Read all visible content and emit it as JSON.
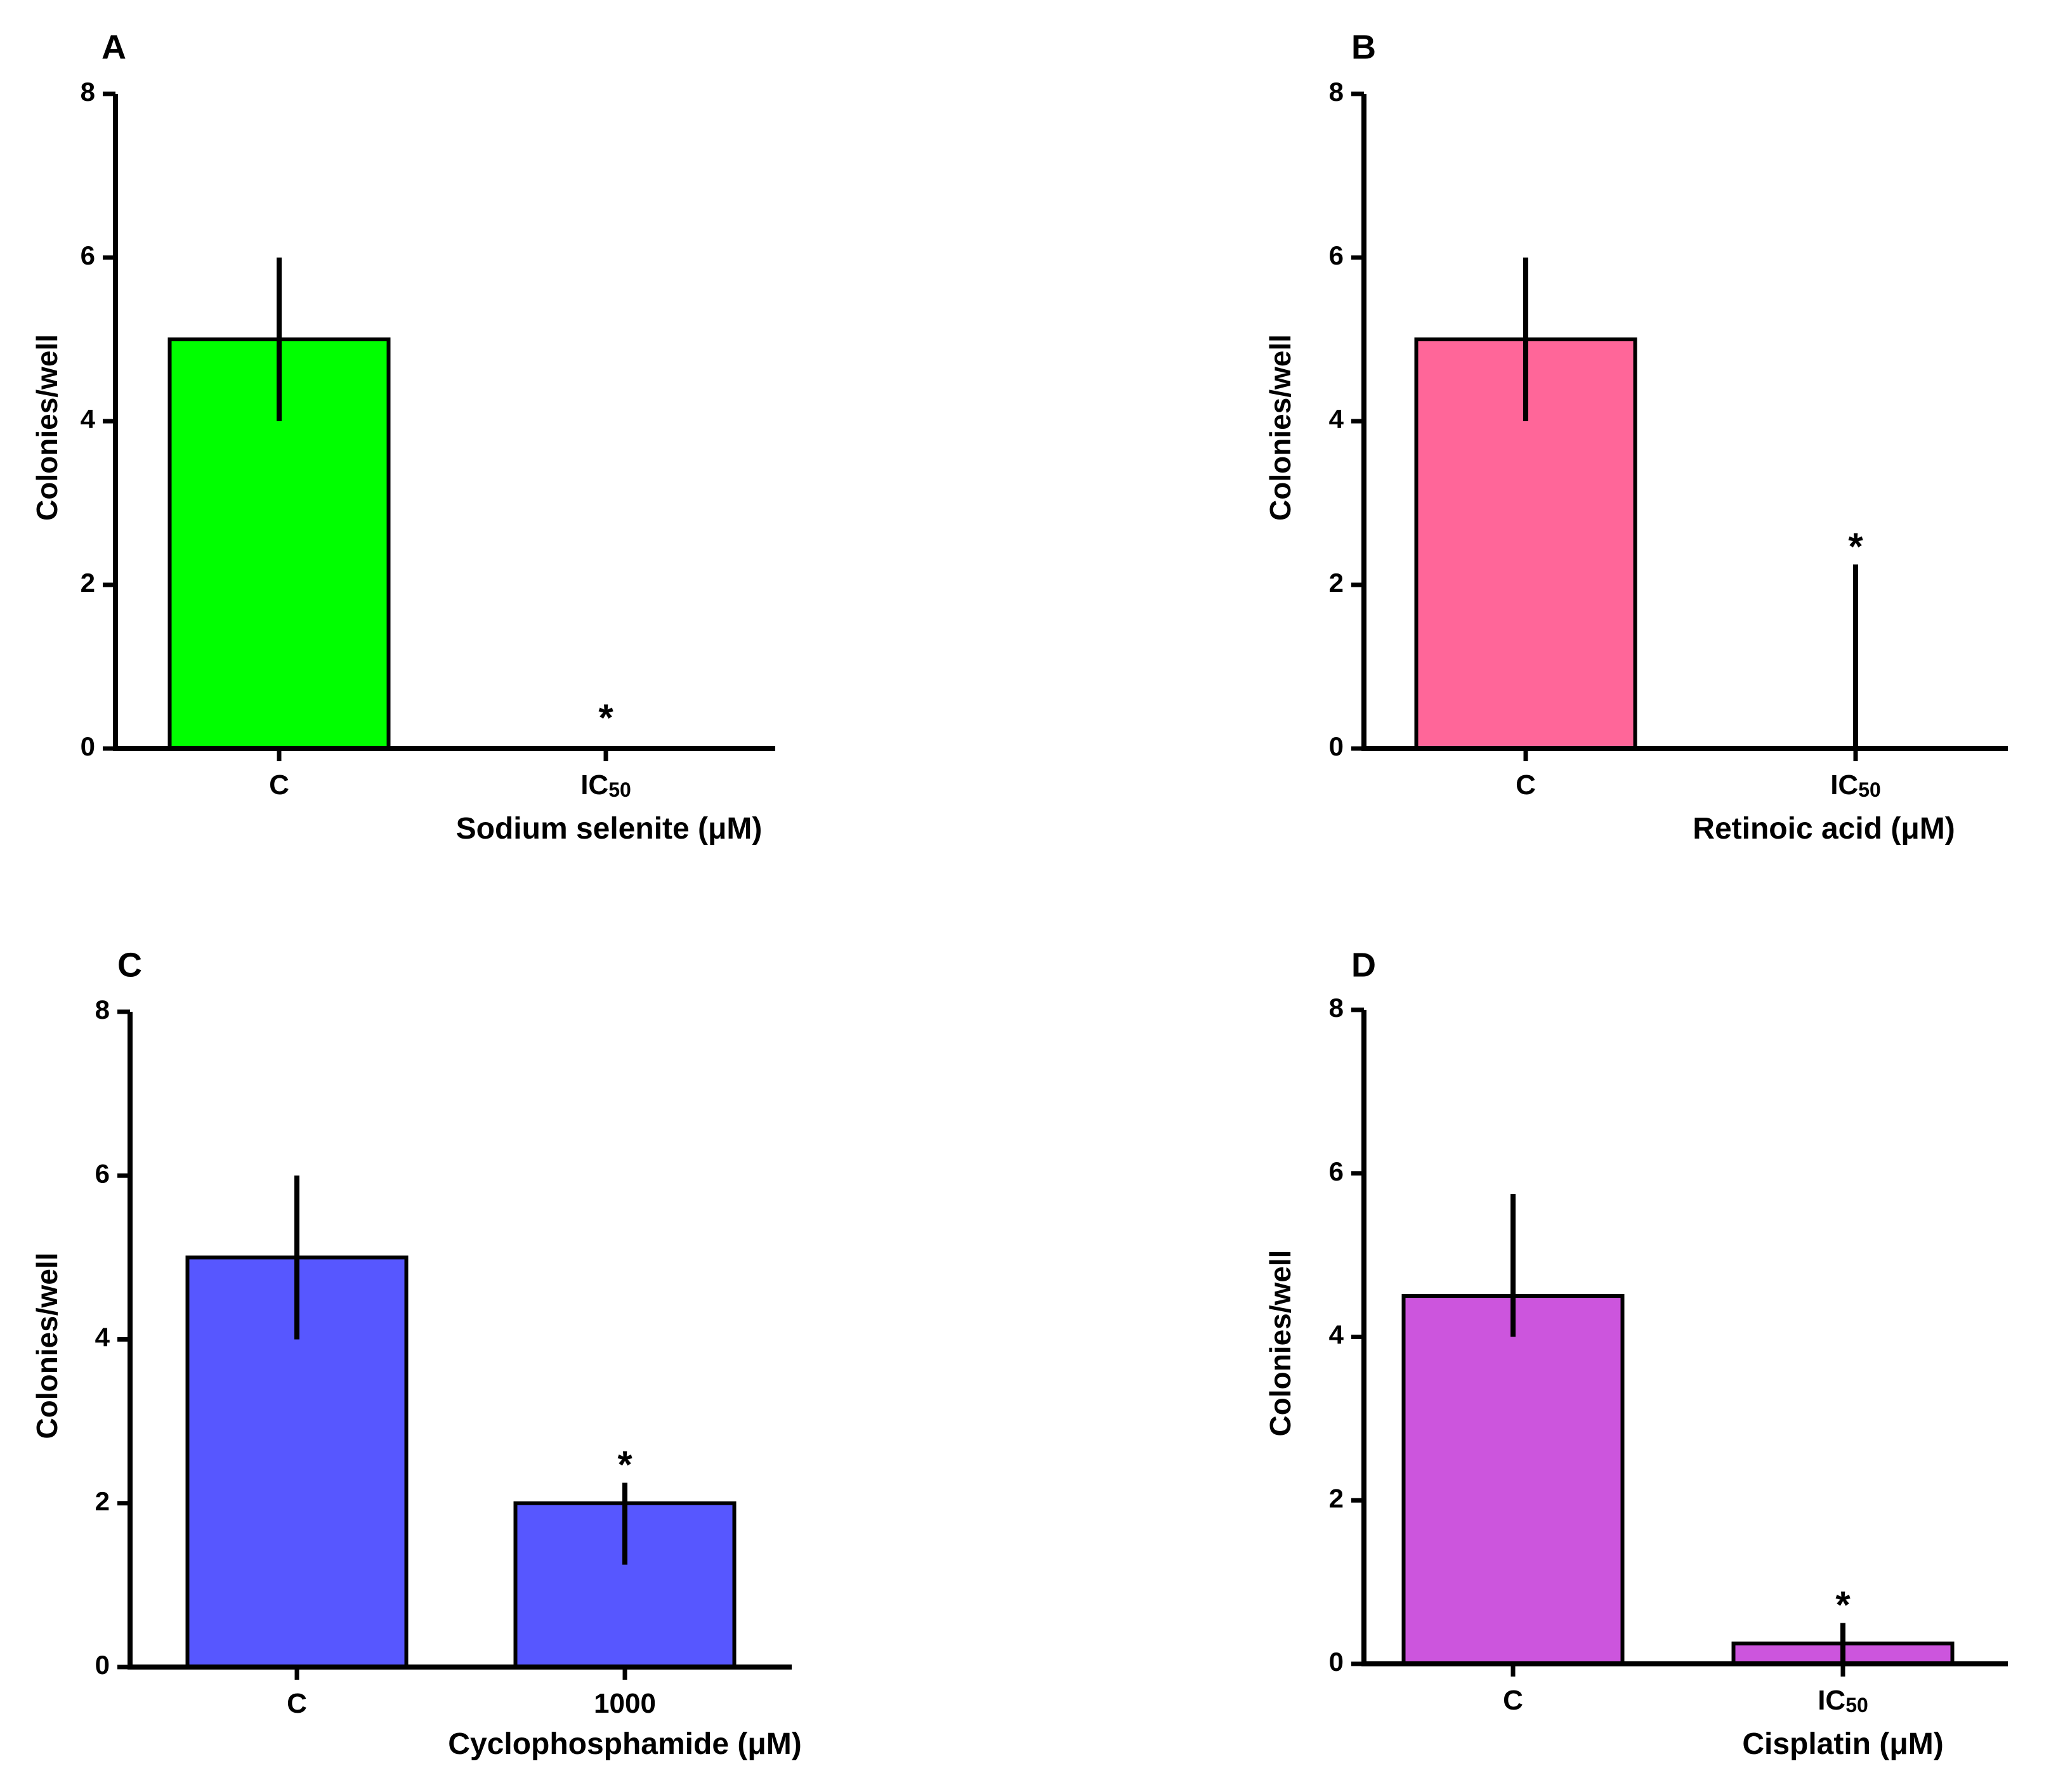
{
  "chart_data": [
    {
      "type": "bar",
      "panel_label": "A",
      "categories": [
        "C",
        "IC50"
      ],
      "category_display": [
        {
          "main": "C",
          "sub": ""
        },
        {
          "main": "IC",
          "sub": "50"
        }
      ],
      "values": [
        5,
        0
      ],
      "error_upper": [
        6,
        0
      ],
      "error_lower": [
        4,
        0
      ],
      "significance": [
        "",
        "*"
      ],
      "color": "#00ff00",
      "xlabel": "Sodium selenite (μM)",
      "ylabel": "Colonies/well",
      "ylim": [
        0,
        8
      ],
      "yticks": [
        0,
        2,
        4,
        6,
        8
      ]
    },
    {
      "type": "bar",
      "panel_label": "B",
      "categories": [
        "C",
        "IC50"
      ],
      "category_display": [
        {
          "main": "C",
          "sub": ""
        },
        {
          "main": "IC",
          "sub": "50"
        }
      ],
      "values": [
        5,
        0
      ],
      "error_upper": [
        6,
        2.25
      ],
      "error_lower": [
        4,
        0
      ],
      "significance": [
        "",
        "*"
      ],
      "color": "#ff6699",
      "xlabel": "Retinoic acid (μM)",
      "ylabel": "Colonies/well",
      "ylim": [
        0,
        8
      ],
      "yticks": [
        0,
        2,
        4,
        6,
        8
      ]
    },
    {
      "type": "bar",
      "panel_label": "C",
      "categories": [
        "C",
        "1000"
      ],
      "category_display": [
        {
          "main": "C",
          "sub": ""
        },
        {
          "main": "1000",
          "sub": ""
        }
      ],
      "values": [
        5,
        2
      ],
      "error_upper": [
        6,
        2.25
      ],
      "error_lower": [
        4,
        1.25
      ],
      "significance": [
        "",
        "*"
      ],
      "color": "#5757ff",
      "xlabel": "Cyclophosphamide (μM)",
      "ylabel": "Colonies/well",
      "ylim": [
        0,
        8
      ],
      "yticks": [
        0,
        2,
        4,
        6,
        8
      ]
    },
    {
      "type": "bar",
      "panel_label": "D",
      "categories": [
        "C",
        "IC50"
      ],
      "category_display": [
        {
          "main": "C",
          "sub": ""
        },
        {
          "main": "IC",
          "sub": "50"
        }
      ],
      "values": [
        4.5,
        0.25
      ],
      "error_upper": [
        5.75,
        0.5
      ],
      "error_lower": [
        4,
        0
      ],
      "significance": [
        "",
        "*"
      ],
      "color": "#cc55dd",
      "xlabel": "Cisplatin (μM)",
      "ylabel": "Colonies/well",
      "ylim": [
        0,
        8
      ],
      "yticks": [
        0,
        2,
        4,
        6,
        8
      ]
    }
  ]
}
